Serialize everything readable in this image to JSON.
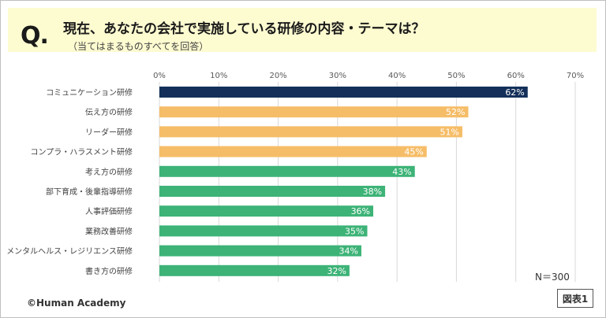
{
  "question": {
    "mark": "Q.",
    "title": "現在、あなたの会社で実施している研修の内容・テーマは？",
    "subtitle": "（当てはまるものすべてを回答）"
  },
  "footer": {
    "copyright": "©Human Academy",
    "figure_label": "図表1",
    "sample_size": "N＝300"
  },
  "chart_data": {
    "type": "bar",
    "orientation": "horizontal",
    "categories": [
      "コミュニケーション研修",
      "伝え方の研修",
      "リーダー研修",
      "コンプラ・ハラスメント研修",
      "考え方の研修",
      "部下育成・後輩指導研修",
      "人事評価研修",
      "業務改善研修",
      "メンタルヘルス・レジリエンス研修",
      "書き方の研修"
    ],
    "values": [
      62,
      52,
      51,
      45,
      43,
      38,
      36,
      35,
      34,
      32
    ],
    "value_labels": [
      "62%",
      "52%",
      "51%",
      "45%",
      "43%",
      "38%",
      "36%",
      "35%",
      "34%",
      "32%"
    ],
    "bar_colors": [
      "#14305a",
      "#f6bd68",
      "#f6bd68",
      "#f6bd68",
      "#3db377",
      "#3db377",
      "#3db377",
      "#3db377",
      "#3db377",
      "#3db377"
    ],
    "xlim": [
      0,
      70
    ],
    "xticks": [
      0,
      10,
      20,
      30,
      40,
      50,
      60,
      70
    ],
    "xtick_labels": [
      "0%",
      "10%",
      "20%",
      "30%",
      "40%",
      "50%",
      "60%",
      "70%"
    ],
    "grid": true,
    "gridline_color": "#d9d9d9"
  }
}
